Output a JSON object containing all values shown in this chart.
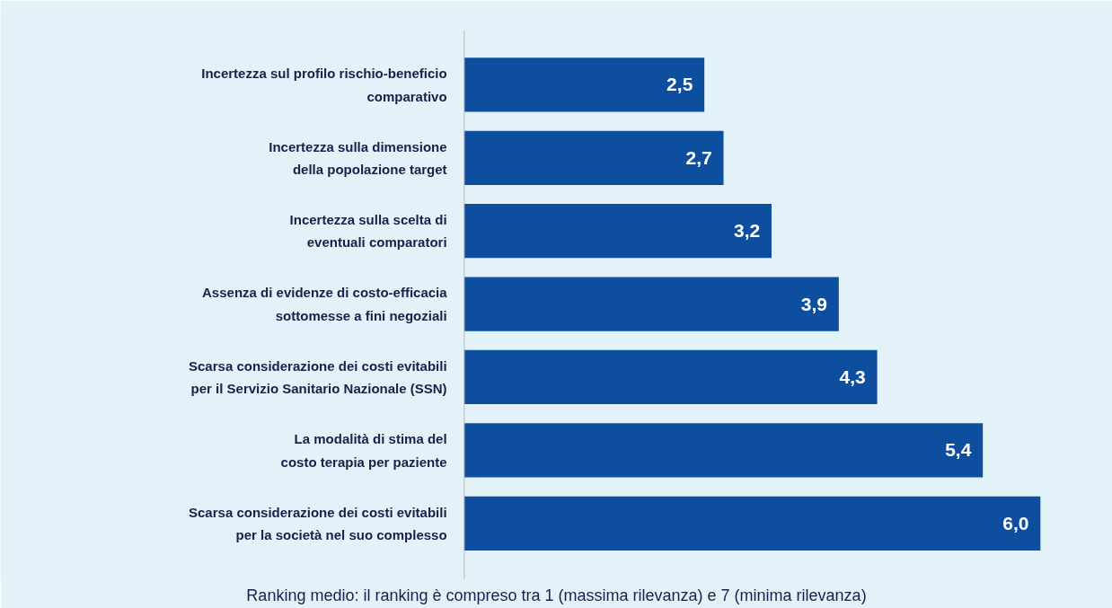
{
  "chart_data": {
    "type": "bar",
    "orientation": "horizontal",
    "relative": false,
    "categories": [
      "Incertezza sul profilo rischio-beneficio\ncomparativo",
      "Incertezza sulla dimensione\ndella popolazione target",
      "Incertezza sulla scelta di\neventuali comparatori",
      "Assenza di evidenze di costo-efficacia\nsottomesse a fini negoziali",
      "Scarsa considerazione dei costi evitabili\nper il Servizio Sanitario Nazionale (SSN)",
      "La modalità di stima del\ncosto terapia per paziente",
      "Scarsa considerazione dei costi evitabili\nper la società nel suo complesso"
    ],
    "values": [
      2.5,
      2.7,
      3.2,
      3.9,
      4.3,
      5.4,
      6.0
    ],
    "value_labels": [
      "2,5",
      "2,7",
      "3,2",
      "3,9",
      "4,3",
      "5,4",
      "6,0"
    ],
    "color": "#0d4f9e",
    "annotations": [
      "Ranking medio: il ranking è compreso tra 1 (massima rilevanza) e 7 (minima rilevanza)"
    ]
  }
}
